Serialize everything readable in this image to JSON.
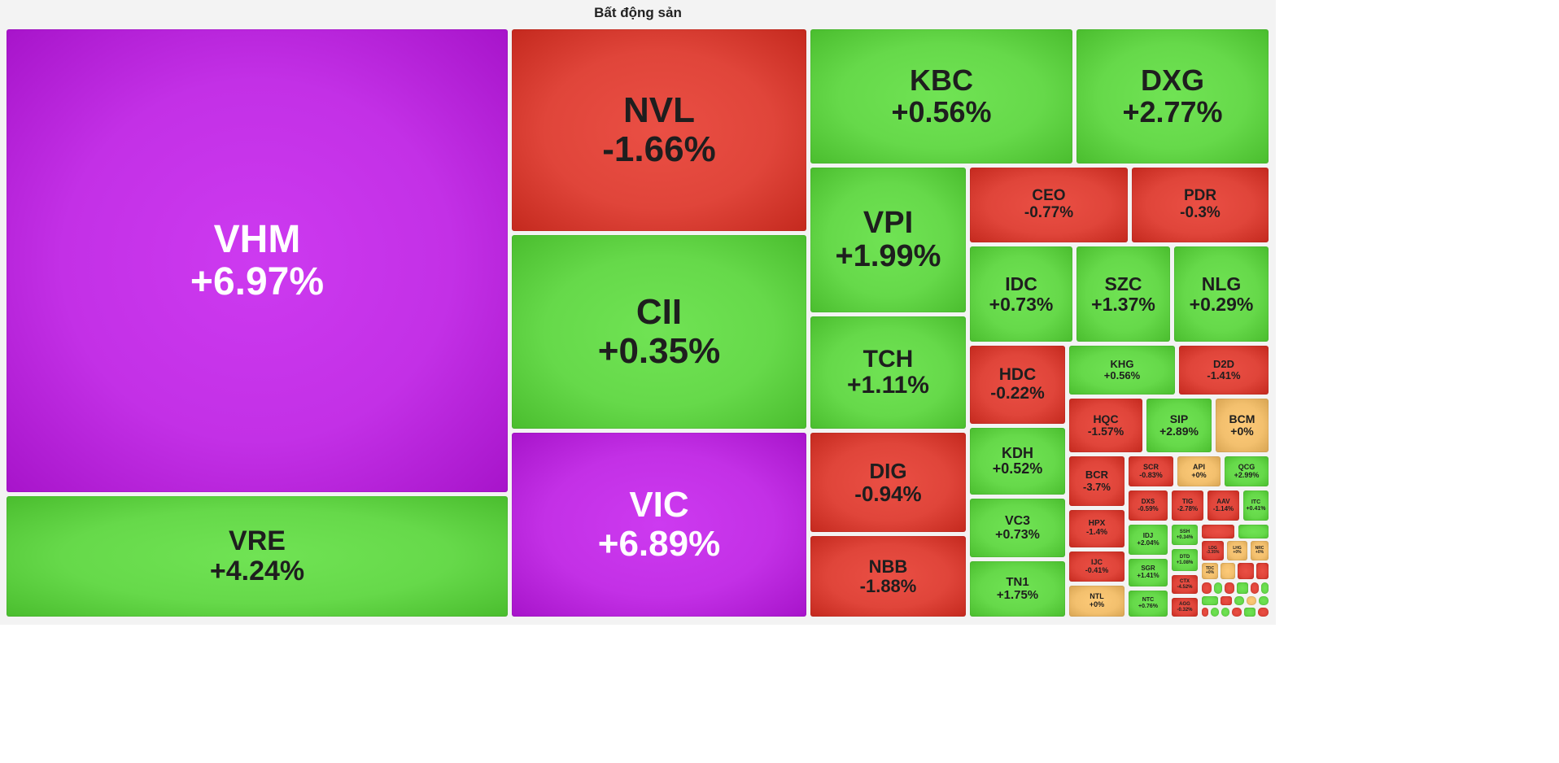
{
  "page": {
    "title": "Bất động sản"
  },
  "colors": {
    "ceiling": "#c330e6",
    "up": "#66d94a",
    "down": "#e0453a",
    "flat": "#f3c06e",
    "text_dark": "#1e1e1e",
    "text_light": "#ffffff"
  },
  "chart_data": {
    "type": "treemap",
    "title": "Bất động sản",
    "value_unit": "% change",
    "tiles": [
      {
        "symbol": "VHM",
        "change": "+6.97%",
        "status": "ceiling"
      },
      {
        "symbol": "VRE",
        "change": "+4.24%",
        "status": "up"
      },
      {
        "symbol": "NVL",
        "change": "-1.66%",
        "status": "down"
      },
      {
        "symbol": "CII",
        "change": "+0.35%",
        "status": "up"
      },
      {
        "symbol": "VIC",
        "change": "+6.89%",
        "status": "ceiling"
      },
      {
        "symbol": "KBC",
        "change": "+0.56%",
        "status": "up"
      },
      {
        "symbol": "DXG",
        "change": "+2.77%",
        "status": "up"
      },
      {
        "symbol": "VPI",
        "change": "+1.99%",
        "status": "up"
      },
      {
        "symbol": "TCH",
        "change": "+1.11%",
        "status": "up"
      },
      {
        "symbol": "DIG",
        "change": "-0.94%",
        "status": "down"
      },
      {
        "symbol": "NBB",
        "change": "-1.88%",
        "status": "down"
      },
      {
        "symbol": "CEO",
        "change": "-0.77%",
        "status": "down"
      },
      {
        "symbol": "PDR",
        "change": "-0.3%",
        "status": "down"
      },
      {
        "symbol": "IDC",
        "change": "+0.73%",
        "status": "up"
      },
      {
        "symbol": "SZC",
        "change": "+1.37%",
        "status": "up"
      },
      {
        "symbol": "NLG",
        "change": "+0.29%",
        "status": "up"
      },
      {
        "symbol": "HDC",
        "change": "-0.22%",
        "status": "down"
      },
      {
        "symbol": "KHG",
        "change": "+0.56%",
        "status": "up"
      },
      {
        "symbol": "D2D",
        "change": "-1.41%",
        "status": "down"
      },
      {
        "symbol": "HQC",
        "change": "-1.57%",
        "status": "down"
      },
      {
        "symbol": "SIP",
        "change": "+2.89%",
        "status": "up"
      },
      {
        "symbol": "BCM",
        "change": "+0%",
        "status": "flat"
      },
      {
        "symbol": "KDH",
        "change": "+0.52%",
        "status": "up"
      },
      {
        "symbol": "VC3",
        "change": "+0.73%",
        "status": "up"
      },
      {
        "symbol": "TN1",
        "change": "+1.75%",
        "status": "up"
      },
      {
        "symbol": "BCR",
        "change": "-3.7%",
        "status": "down"
      },
      {
        "symbol": "HPX",
        "change": "-1.4%",
        "status": "down"
      },
      {
        "symbol": "IJC",
        "change": "-0.41%",
        "status": "down"
      },
      {
        "symbol": "NTL",
        "change": "+0%",
        "status": "flat"
      },
      {
        "symbol": "SCR",
        "change": "-0.83%",
        "status": "down"
      },
      {
        "symbol": "API",
        "change": "+0%",
        "status": "flat"
      },
      {
        "symbol": "QCG",
        "change": "+2.99%",
        "status": "up"
      },
      {
        "symbol": "DXS",
        "change": "-0.59%",
        "status": "down"
      },
      {
        "symbol": "TIG",
        "change": "-2.78%",
        "status": "down"
      },
      {
        "symbol": "AAV",
        "change": "-1.14%",
        "status": "down"
      },
      {
        "symbol": "ITC",
        "change": "+0.41%",
        "status": "up"
      },
      {
        "symbol": "IDJ",
        "change": "+2.04%",
        "status": "up"
      },
      {
        "symbol": "SSH",
        "change": "+0.34%",
        "status": "up"
      },
      {
        "symbol": "SGR",
        "change": "+1.41%",
        "status": "up"
      },
      {
        "symbol": "DTD",
        "change": "+1.08%",
        "status": "up"
      },
      {
        "symbol": "NTC",
        "change": "+0.76%",
        "status": "up"
      },
      {
        "symbol": "CTX",
        "change": "-4.52%",
        "status": "down"
      },
      {
        "symbol": "AGG",
        "change": "-0.32%",
        "status": "down"
      },
      {
        "symbol": "LDG",
        "change": "-3.35%",
        "status": "down"
      },
      {
        "symbol": "LHG",
        "change": "+0%",
        "status": "flat"
      },
      {
        "symbol": "NRC",
        "change": "+0%",
        "status": "flat"
      },
      {
        "symbol": "TDC",
        "change": "+0%",
        "status": "flat"
      }
    ]
  }
}
